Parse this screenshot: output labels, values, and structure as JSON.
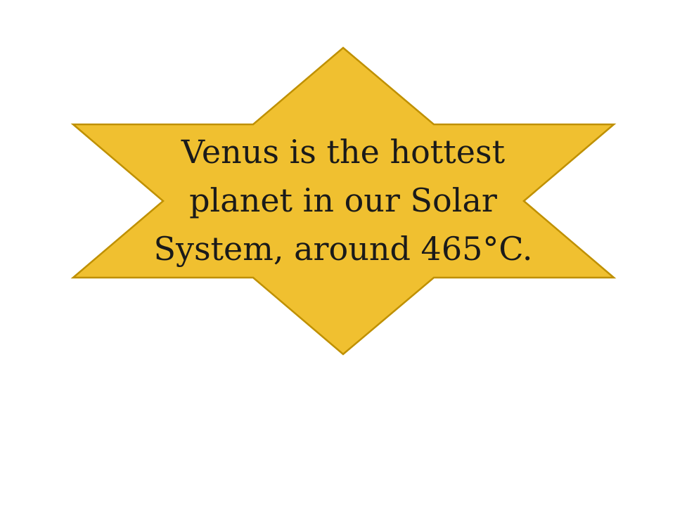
{
  "shape": {
    "type": "six-point-star",
    "fill": "#F0C030",
    "stroke": "#BF9000",
    "lines": [
      "Venus is the hottest",
      "planet in our Solar",
      "System, around 465°C."
    ]
  }
}
